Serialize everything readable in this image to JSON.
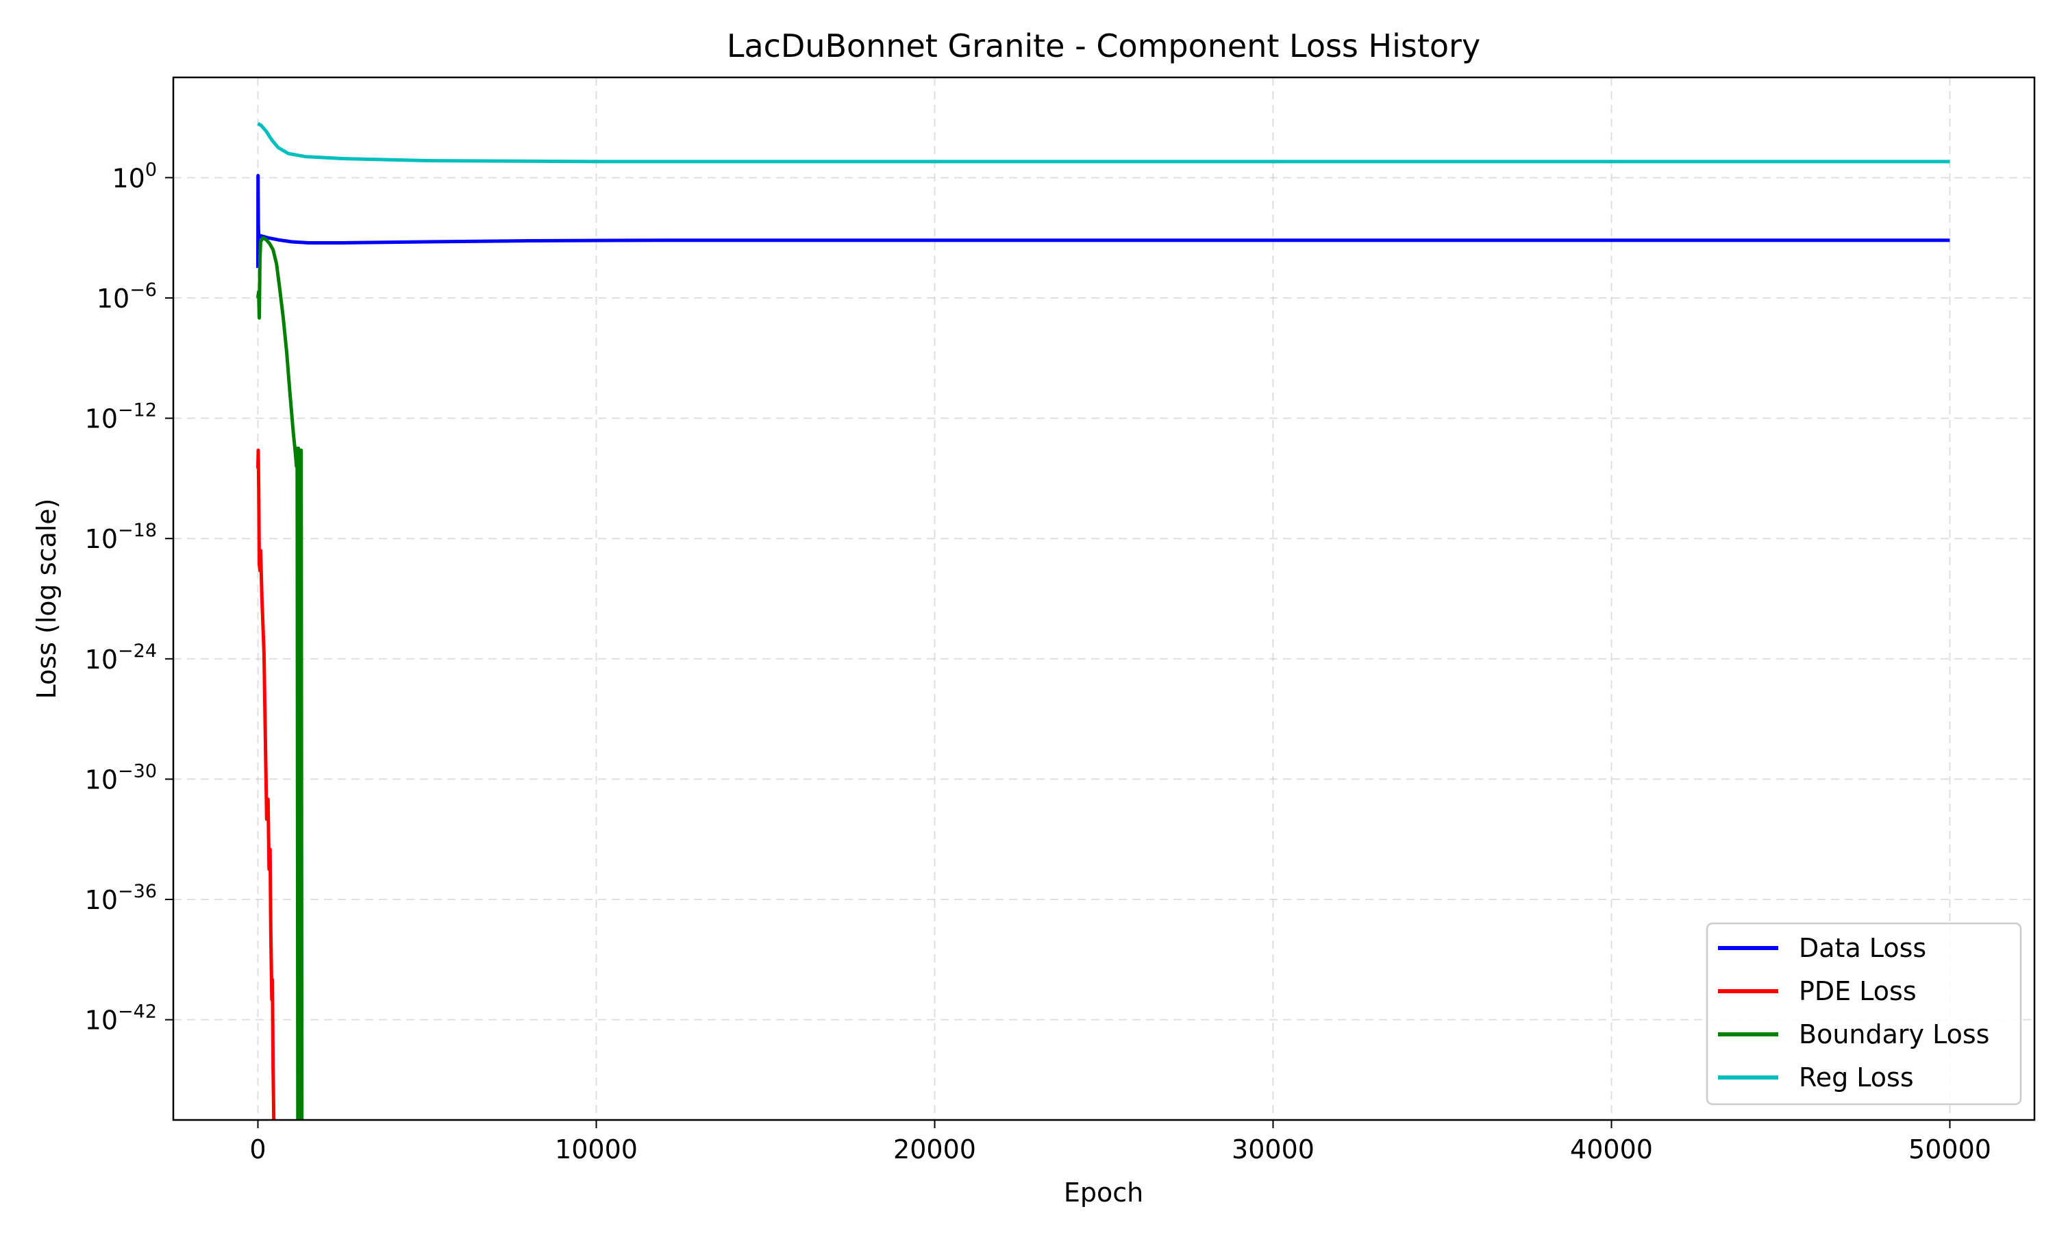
{
  "chart_data": {
    "type": "line",
    "title": "LacDuBonnet Granite - Component Loss History",
    "xlabel": "Epoch",
    "ylabel": "Loss (log scale)",
    "xlim": [
      -2500,
      52500
    ],
    "ylim_log10": [
      -47,
      5
    ],
    "x_ticks": [
      0,
      10000,
      20000,
      30000,
      40000,
      50000
    ],
    "y_ticks_log10": [
      0,
      -6,
      -12,
      -18,
      -24,
      -30,
      -36,
      -42
    ],
    "y_tick_base": "10",
    "grid": true,
    "legend_position": "lower-right",
    "series": [
      {
        "name": "Data Loss",
        "color": "#0000ff",
        "points": [
          [
            0,
            -4.5
          ],
          [
            5,
            0.1
          ],
          [
            15,
            -2.5
          ],
          [
            30,
            -3.0
          ],
          [
            80,
            -2.9
          ],
          [
            300,
            -3.0
          ],
          [
            600,
            -3.1
          ],
          [
            1000,
            -3.2
          ],
          [
            1500,
            -3.25
          ],
          [
            2500,
            -3.25
          ],
          [
            5000,
            -3.2
          ],
          [
            8000,
            -3.15
          ],
          [
            12000,
            -3.12
          ],
          [
            20000,
            -3.12
          ],
          [
            30000,
            -3.12
          ],
          [
            40000,
            -3.12
          ],
          [
            50000,
            -3.12
          ]
        ]
      },
      {
        "name": "PDE Loss",
        "color": "#ff0000",
        "points": [
          [
            0,
            -14.5
          ],
          [
            10,
            -13.6
          ],
          [
            25,
            -15.5
          ],
          [
            40,
            -19.3
          ],
          [
            60,
            -19.6
          ],
          [
            80,
            -18.6
          ],
          [
            120,
            -21.0
          ],
          [
            180,
            -23.7
          ],
          [
            220,
            -28.0
          ],
          [
            260,
            -32.0
          ],
          [
            300,
            -31.0
          ],
          [
            330,
            -34.5
          ],
          [
            360,
            -33.5
          ],
          [
            380,
            -37.5
          ],
          [
            410,
            -41.0
          ],
          [
            430,
            -40.0
          ],
          [
            450,
            -44.5
          ],
          [
            470,
            -47.0
          ]
        ]
      },
      {
        "name": "Boundary Loss",
        "color": "#008000",
        "points": [
          [
            0,
            -6.0
          ],
          [
            20,
            -5.7
          ],
          [
            40,
            -7.0
          ],
          [
            60,
            -4.0
          ],
          [
            80,
            -3.2
          ],
          [
            150,
            -3.0
          ],
          [
            250,
            -3.1
          ],
          [
            350,
            -3.3
          ],
          [
            450,
            -3.6
          ],
          [
            550,
            -4.3
          ],
          [
            650,
            -5.6
          ],
          [
            750,
            -7.0
          ],
          [
            850,
            -8.7
          ],
          [
            950,
            -10.8
          ],
          [
            1050,
            -12.8
          ],
          [
            1100,
            -13.6
          ],
          [
            1140,
            -14.4
          ],
          [
            1160,
            -13.5
          ],
          [
            1180,
            -47.0
          ],
          [
            1200,
            -13.5
          ],
          [
            1220,
            -47.0
          ],
          [
            1240,
            -13.6
          ],
          [
            1260,
            -47.0
          ],
          [
            1280,
            -13.6
          ],
          [
            1300,
            -47.0
          ]
        ]
      },
      {
        "name": "Reg Loss",
        "color": "#00bfbf",
        "points": [
          [
            0,
            2.7
          ],
          [
            100,
            2.6
          ],
          [
            250,
            2.3
          ],
          [
            400,
            1.9
          ],
          [
            600,
            1.5
          ],
          [
            900,
            1.2
          ],
          [
            1400,
            1.05
          ],
          [
            2500,
            0.95
          ],
          [
            5000,
            0.85
          ],
          [
            10000,
            0.8
          ],
          [
            20000,
            0.8
          ],
          [
            30000,
            0.8
          ],
          [
            40000,
            0.8
          ],
          [
            50000,
            0.8
          ]
        ]
      }
    ]
  }
}
